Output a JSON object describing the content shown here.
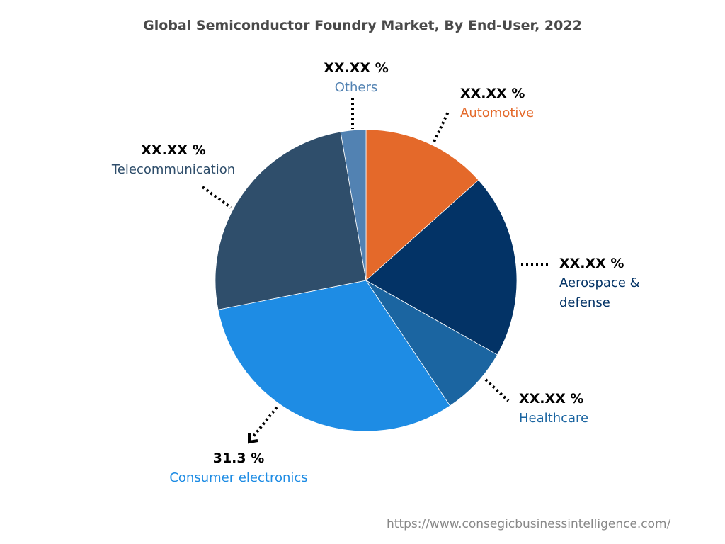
{
  "chart_data": {
    "type": "pie",
    "title": "Global Semiconductor Foundry Market, By End-User, 2022",
    "slices": [
      {
        "name": "Automotive",
        "value": 13.4,
        "label": "XX.XX %",
        "color": "#E4692A"
      },
      {
        "name": "Aerospace & defense",
        "value": 19.8,
        "label": "XX.XX %",
        "color": "#033366"
      },
      {
        "name": "Healthcare",
        "value": 7.4,
        "label": "XX.XX %",
        "color": "#1B65A1"
      },
      {
        "name": "Consumer electronics",
        "value": 31.3,
        "label": "31.3 %",
        "color": "#1E8CE4"
      },
      {
        "name": "Telecommunication",
        "value": 25.4,
        "label": "XX.XX %",
        "color": "#2F4E6B"
      },
      {
        "name": "Others",
        "value": 2.7,
        "label": "XX.XX %",
        "color": "#5282B2"
      }
    ],
    "start": "top",
    "direction": "clockwise",
    "legend": "none"
  },
  "watermark": "https://www.consegicbusinessintelligence.com/"
}
